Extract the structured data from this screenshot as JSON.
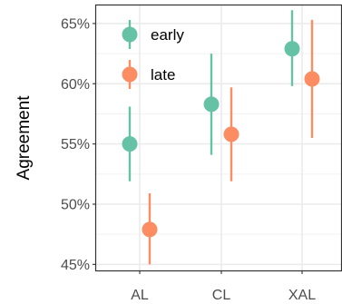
{
  "chart_data": {
    "type": "scatter",
    "subtype": "point-range",
    "categories": [
      "AL",
      "CL",
      "XAL"
    ],
    "ylabel": "Agreement",
    "xlabel": "",
    "ylim": [
      44.5,
      66.5
    ],
    "yticks": [
      45,
      50,
      55,
      60,
      65
    ],
    "ytick_labels": [
      "45%",
      "50%",
      "55%",
      "60%",
      "65%"
    ],
    "grid": true,
    "legend_position": "top-left",
    "series": [
      {
        "name": "early",
        "color": "#66c2a5",
        "values": [
          55.0,
          58.3,
          62.9
        ],
        "lower": [
          51.9,
          54.1,
          59.8
        ],
        "upper": [
          58.1,
          62.5,
          66.1
        ]
      },
      {
        "name": "late",
        "color": "#fc8d62",
        "values": [
          47.9,
          55.8,
          60.4
        ],
        "lower": [
          45.0,
          51.9,
          55.5
        ],
        "upper": [
          50.9,
          59.7,
          65.3
        ]
      }
    ]
  }
}
